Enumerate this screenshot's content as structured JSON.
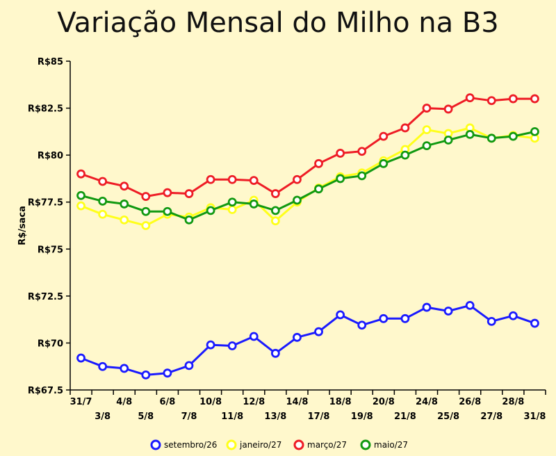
{
  "chart_data": {
    "type": "line",
    "title": "Variação Mensal do Milho na B3",
    "xlabel": "",
    "ylabel": "R$/saca",
    "ylim": [
      67.5,
      85
    ],
    "yticks": [
      "R$67.5",
      "R$70",
      "R$72.5",
      "R$75",
      "R$77.5",
      "R$80",
      "R$82.5",
      "R$85"
    ],
    "ytick_values": [
      67.5,
      70,
      72.5,
      75,
      77.5,
      80,
      82.5,
      85
    ],
    "grid": false,
    "legend_position": "bottom",
    "categories": [
      "31/7",
      "3/8",
      "4/8",
      "5/8",
      "6/8",
      "7/8",
      "10/8",
      "11/8",
      "12/8",
      "13/8",
      "14/8",
      "17/8",
      "18/8",
      "19/8",
      "20/8",
      "21/8",
      "24/8",
      "25/8",
      "26/8",
      "27/8",
      "28/8",
      "31/8"
    ],
    "series": [
      {
        "name": "setembro/26",
        "color": "#1a1aff",
        "values": [
          69.2,
          68.75,
          68.65,
          68.3,
          68.4,
          68.8,
          69.9,
          69.85,
          70.35,
          69.45,
          70.3,
          70.6,
          71.5,
          70.95,
          71.3,
          71.3,
          71.9,
          71.7,
          72.0,
          71.15,
          71.45,
          71.05
        ]
      },
      {
        "name": "janeiro/27",
        "color": "#ffff1a",
        "values": [
          77.3,
          76.85,
          76.55,
          76.25,
          76.85,
          76.7,
          77.2,
          77.1,
          77.6,
          76.5,
          77.5,
          78.25,
          78.85,
          79.05,
          79.7,
          80.3,
          81.35,
          81.15,
          81.45,
          80.9,
          81.05,
          80.9
        ]
      },
      {
        "name": "março/27",
        "color": "#ee1c25",
        "values": [
          79.0,
          78.6,
          78.35,
          77.8,
          78.0,
          77.95,
          78.7,
          78.7,
          78.65,
          77.95,
          78.7,
          79.55,
          80.1,
          80.2,
          81.0,
          81.45,
          82.5,
          82.45,
          83.05,
          82.9,
          83.0,
          83.0
        ]
      },
      {
        "name": "maio/27",
        "color": "#119911",
        "values": [
          77.85,
          77.55,
          77.4,
          77.0,
          77.0,
          76.55,
          77.05,
          77.5,
          77.4,
          77.05,
          77.6,
          78.2,
          78.75,
          78.9,
          79.55,
          80.0,
          80.5,
          80.8,
          81.1,
          80.9,
          81.0,
          81.25
        ]
      }
    ]
  }
}
